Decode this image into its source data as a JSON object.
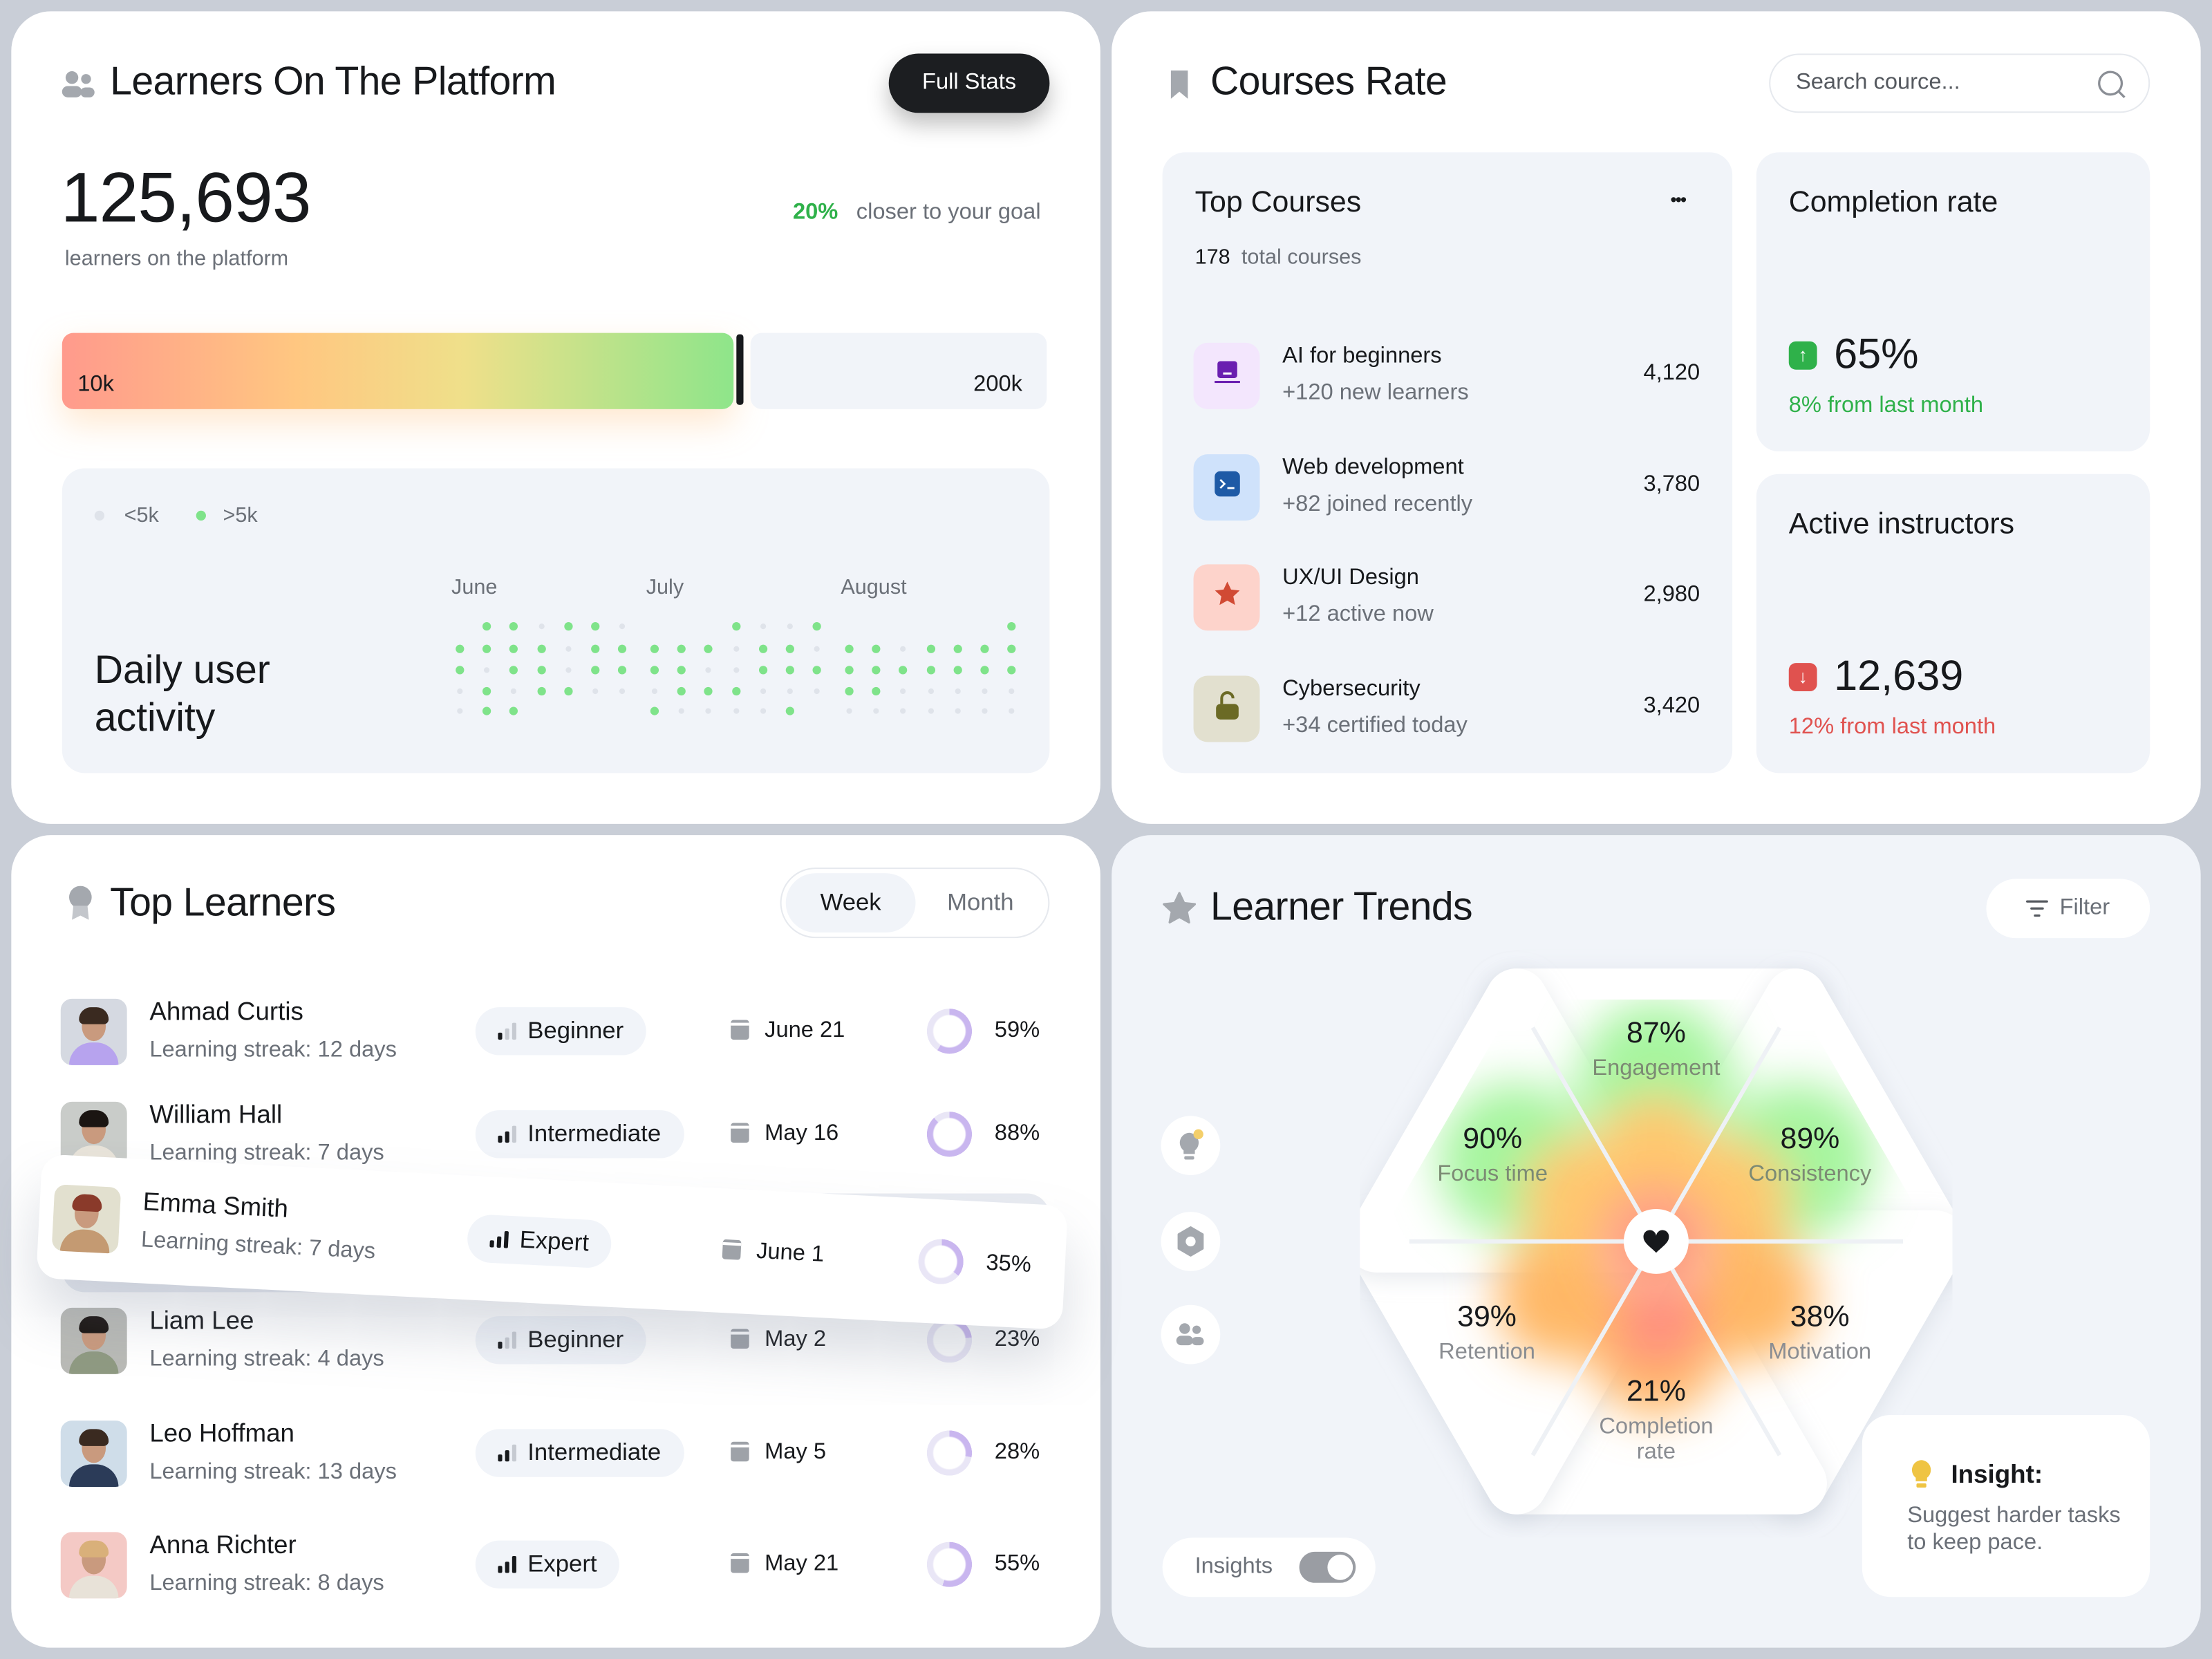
{
  "colors": {
    "accent_green": "#2fb14a",
    "accent_red": "#e0524f",
    "dot_active": "#7fe38a",
    "dot_inactive": "#dfe3ea",
    "donut": "#c9b6ef",
    "dark": "#17191c"
  },
  "learners": {
    "title": "Learners On The Platform",
    "icon": "users-icon",
    "full_stats_label": "Full Stats",
    "count": "125,693",
    "count_label": "learners on the platform",
    "goal_percent": "20%",
    "goal_text": "closer to your goal",
    "progress": {
      "min_label": "10k",
      "max_label": "200k",
      "fraction": 0.63
    },
    "activity": {
      "title": "Daily user activity",
      "legend": [
        {
          "label": "<5k",
          "color": "#dfe3ea"
        },
        {
          "label": ">5k",
          "color": "#7fe38a"
        }
      ],
      "months": [
        {
          "label": "June",
          "rows": [
            [
              null,
              1,
              1,
              0,
              1,
              1,
              0
            ],
            [
              1,
              1,
              1,
              1,
              0,
              1,
              1
            ],
            [
              1,
              0,
              1,
              1,
              0,
              1,
              1
            ],
            [
              0,
              1,
              0,
              1,
              1,
              0,
              0
            ],
            [
              0,
              1,
              1
            ]
          ]
        },
        {
          "label": "July",
          "rows": [
            [
              null,
              null,
              null,
              1,
              0,
              0,
              1
            ],
            [
              1,
              1,
              1,
              0,
              1,
              1,
              0
            ],
            [
              1,
              1,
              0,
              0,
              1,
              1,
              1
            ],
            [
              0,
              1,
              1,
              1,
              0,
              0,
              0
            ],
            [
              1,
              0,
              0,
              0,
              0,
              1
            ]
          ]
        },
        {
          "label": "August",
          "rows": [
            [
              null,
              null,
              null,
              null,
              null,
              null,
              1
            ],
            [
              1,
              1,
              0,
              1,
              1,
              1,
              1
            ],
            [
              1,
              1,
              1,
              1,
              1,
              1,
              1
            ],
            [
              1,
              1,
              0,
              0,
              0,
              0,
              0
            ],
            [
              0,
              0,
              0,
              0,
              0,
              0,
              0
            ]
          ]
        }
      ]
    }
  },
  "courses": {
    "title": "Courses Rate",
    "icon": "bookmark-icon",
    "search_placeholder": "Search cource...",
    "top": {
      "title": "Top Courses",
      "more": "•••",
      "total_count": "178",
      "total_label": "total courses",
      "items": [
        {
          "name": "AI for beginners",
          "sub": "+120 new learners",
          "value": "4,120",
          "icon": "laptop-icon",
          "bg": "#f3e6fd",
          "fg": "#6a1fb0"
        },
        {
          "name": "Web development",
          "sub": "+82 joined recently",
          "value": "3,780",
          "icon": "terminal-icon",
          "bg": "#cfe2fb",
          "fg": "#1e5aa6"
        },
        {
          "name": "UX/UI Design",
          "sub": "+12 active now",
          "value": "2,980",
          "icon": "star-icon",
          "bg": "#fdd3cb",
          "fg": "#d14a34"
        },
        {
          "name": "Cybersecurity",
          "sub": "+34 certified today",
          "value": "3,420",
          "icon": "unlock-icon",
          "bg": "#e2e0cf",
          "fg": "#6b6a25"
        }
      ]
    },
    "completion": {
      "title": "Completion rate",
      "value": "65%",
      "change": "8% from last month",
      "trend": "up"
    },
    "instructors": {
      "title": "Active instructors",
      "value": "12,639",
      "change": "12% from last month",
      "trend": "down"
    }
  },
  "top_learners": {
    "title": "Top Learners",
    "icon": "medal-icon",
    "tabs": [
      {
        "label": "Week",
        "selected": true
      },
      {
        "label": "Month",
        "selected": false
      }
    ],
    "rows": [
      {
        "name": "Ahmad Curtis",
        "streak": "Learning streak: 12 days",
        "level": "Beginner",
        "bars": 1,
        "date": "June 21",
        "percent": "59%",
        "value": 59,
        "bg": "#d5d9e1",
        "shirt": "#b7a3ee",
        "hair": "#3a2a20"
      },
      {
        "name": "William Hall",
        "streak": "Learning streak: 7 days",
        "level": "Intermediate",
        "bars": 2,
        "date": "May 16",
        "percent": "88%",
        "value": 88,
        "bg": "#c9ccc9",
        "shirt": "#e9e4da",
        "hair": "#1b1512"
      },
      {
        "name": "Emma Smith",
        "streak": "Learning streak: 7 days",
        "level": "Expert",
        "bars": 3,
        "date": "June 1",
        "percent": "35%",
        "value": 35,
        "bg": "#e2e0cf",
        "shirt": "#c49a72",
        "hair": "#8a3a2a"
      },
      {
        "name": "Liam Lee",
        "streak": "Learning streak: 4 days",
        "level": "Beginner",
        "bars": 1,
        "date": "May 2",
        "percent": "23%",
        "value": 23,
        "bg": "#b9bab6",
        "shirt": "#8f9a82",
        "hair": "#1b1512"
      },
      {
        "name": "Leo Hoffman",
        "streak": "Learning streak: 13 days",
        "level": "Intermediate",
        "bars": 2,
        "date": "May 5",
        "percent": "28%",
        "value": 28,
        "bg": "#cfdde9",
        "shirt": "#2b3b58",
        "hair": "#3a2a20"
      },
      {
        "name": "Anna Richter",
        "streak": "Learning streak: 8 days",
        "level": "Expert",
        "bars": 3,
        "date": "May 21",
        "percent": "55%",
        "value": 55,
        "bg": "#f4c9c5",
        "shirt": "#e8e2d8",
        "hair": "#d9b07a"
      }
    ]
  },
  "trends": {
    "title": "Learner Trends",
    "icon": "star-icon",
    "filter_label": "Filter",
    "side_icons": [
      "lightbulb-icon",
      "hexagon-icon",
      "users-icon"
    ],
    "metrics": [
      {
        "label": "Engagement",
        "value": "87%",
        "v": 87
      },
      {
        "label": "Consistency",
        "value": "89%",
        "v": 89
      },
      {
        "label": "Motivation",
        "value": "38%",
        "v": 38
      },
      {
        "label": "Completion rate",
        "value": "21%",
        "v": 21
      },
      {
        "label": "Retention",
        "value": "39%",
        "v": 39
      },
      {
        "label": "Focus time",
        "value": "90%",
        "v": 90
      }
    ],
    "center_icon": "heart-icon",
    "insights_toggle": {
      "label": "Insights",
      "on": true
    },
    "insight": {
      "title": "Insight:",
      "text": "Suggest harder tasks to keep pace."
    }
  }
}
